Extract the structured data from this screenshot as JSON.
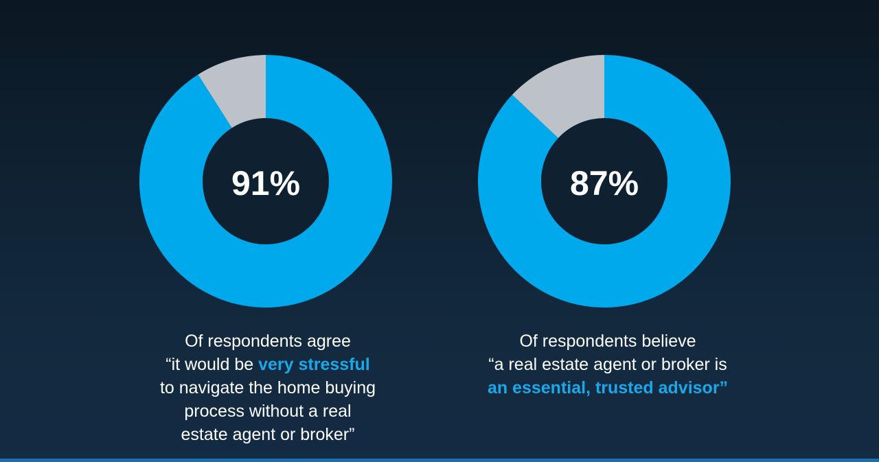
{
  "colors": {
    "primary": "#00a8ec",
    "remainder": "#bdc2c9",
    "hole": "#0f2030",
    "highlight": "#1ba8e8",
    "text": "#ffffff"
  },
  "chart_data": [
    {
      "type": "pie",
      "variant": "donut",
      "values": [
        91,
        9
      ],
      "center_label": "91%",
      "caption": {
        "line1": "Of respondents agree",
        "line2_pre": "“it would be ",
        "line2_highlight": "very stressful",
        "line3": "to navigate the home buying",
        "line4": "process without a real",
        "line5": "estate agent or broker”"
      }
    },
    {
      "type": "pie",
      "variant": "donut",
      "values": [
        87,
        13
      ],
      "center_label": "87%",
      "caption": {
        "line1": "Of respondents believe",
        "line2": "“a real estate agent or broker is",
        "line3_highlight": "an essential, trusted advisor”"
      }
    }
  ]
}
